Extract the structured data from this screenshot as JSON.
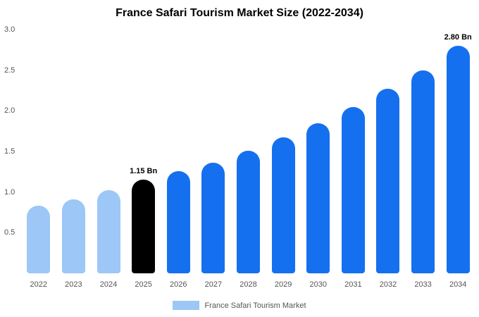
{
  "title": "France Safari Tourism Market Size (2022-2034)",
  "legend": {
    "label": "France Safari Tourism Market",
    "swatch_color": "#9cc7f7"
  },
  "colors": {
    "historical_bar": "#9cc7f7",
    "highlight_bar": "#000000",
    "forecast_bar": "#1570ef",
    "axis_text": "#555555",
    "background": "#ffffff"
  },
  "chart_data": {
    "type": "bar",
    "title": "France Safari Tourism Market Size (2022-2034)",
    "xlabel": "",
    "ylabel": "",
    "categories": [
      "2022",
      "2023",
      "2024",
      "2025",
      "2026",
      "2027",
      "2028",
      "2029",
      "2030",
      "2031",
      "2032",
      "2033",
      "2034"
    ],
    "values": [
      0.83,
      0.91,
      1.02,
      1.15,
      1.26,
      1.36,
      1.51,
      1.67,
      1.85,
      2.05,
      2.27,
      2.5,
      2.8
    ],
    "bar_colors": [
      "#9cc7f7",
      "#9cc7f7",
      "#9cc7f7",
      "#000000",
      "#1570ef",
      "#1570ef",
      "#1570ef",
      "#1570ef",
      "#1570ef",
      "#1570ef",
      "#1570ef",
      "#1570ef",
      "#1570ef"
    ],
    "annotations": [
      {
        "category": "2025",
        "text": "1.15 Bn"
      },
      {
        "category": "2034",
        "text": "2.80 Bn"
      }
    ],
    "ylim": [
      0,
      3.0
    ],
    "yticks": [
      0.5,
      1.0,
      1.5,
      2.0,
      2.5,
      3.0
    ],
    "grid": false,
    "legend_position": "bottom",
    "legend_entries": [
      "France Safari Tourism Market"
    ]
  }
}
